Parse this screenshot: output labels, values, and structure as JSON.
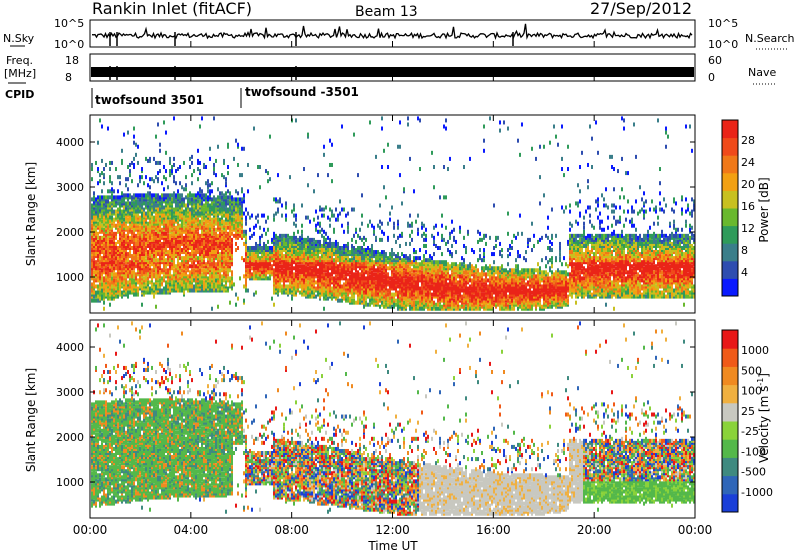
{
  "header": {
    "title": "Rankin Inlet (fitACF)",
    "beam": "Beam 13",
    "date": "27/Sep/2012"
  },
  "top_panels": {
    "nsky": {
      "label": "N.Sky",
      "ticks": [
        "10^5",
        "10^0"
      ]
    },
    "nsearch": {
      "label": "N.Search",
      "ticks": [
        "10^5",
        "10^0"
      ]
    },
    "freq": {
      "label_line1": "Freq.",
      "label_line2": "[MHz]",
      "ticks": [
        "18",
        "8"
      ]
    },
    "nave": {
      "label": "Nave",
      "ticks": [
        "60",
        "0"
      ]
    },
    "cpid": {
      "label": "CPID",
      "segments": [
        {
          "name": "twofsound 3501",
          "start_hour": 0,
          "end_hour": 6
        },
        {
          "name": "twofsound -3501",
          "start_hour": 6,
          "end_hour": 24
        }
      ]
    }
  },
  "x_axis": {
    "label": "Time UT",
    "ticks": [
      "00:00",
      "04:00",
      "08:00",
      "12:00",
      "16:00",
      "20:00",
      "00:00"
    ]
  },
  "chart_data": [
    {
      "type": "heatmap",
      "name": "power-panel",
      "xlabel": "Time UT",
      "ylabel": "Slant Range [km]",
      "xlim": [
        0,
        24
      ],
      "ylim": [
        200,
        4600
      ],
      "yticks": [
        1000,
        2000,
        3000,
        4000
      ],
      "colorbar": {
        "label": "Power [dB]",
        "ticks": [
          "4",
          "8",
          "12",
          "16",
          "20",
          "24",
          "28"
        ],
        "colors": [
          "#0a1aff",
          "#2e4db0",
          "#3a7e8a",
          "#2f9b5a",
          "#69b82e",
          "#c8c020",
          "#f2a012",
          "#f07818",
          "#f04a1a",
          "#ea2418"
        ]
      }
    },
    {
      "type": "heatmap",
      "name": "velocity-panel",
      "xlabel": "Time UT",
      "ylabel": "Slant Range [km]",
      "xlim": [
        0,
        24
      ],
      "ylim": [
        200,
        4600
      ],
      "yticks": [
        1000,
        2000,
        3000,
        4000
      ],
      "colorbar": {
        "label": "Velocity [m s^-1]",
        "ticks": [
          "1000",
          "500",
          "100",
          "25",
          "-25",
          "-100",
          "-500",
          "-1000"
        ],
        "colors": [
          "#1a3fd8",
          "#2f66b8",
          "#3f8a80",
          "#54b84a",
          "#8ad23a",
          "#c8c8c0",
          "#f0b040",
          "#f08a20",
          "#f05a18",
          "#e81818"
        ]
      }
    }
  ]
}
